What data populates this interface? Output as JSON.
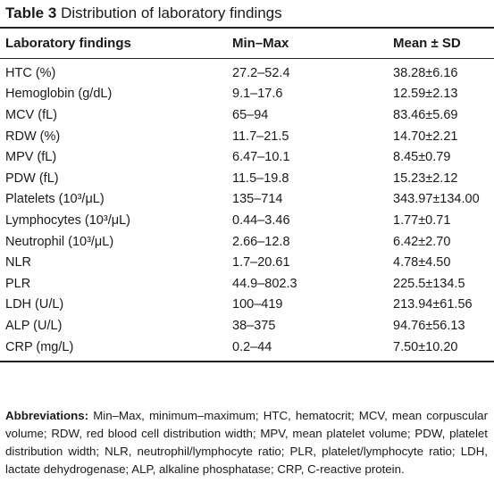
{
  "caption": {
    "label": "Table 3",
    "title": "Distribution of laboratory findings"
  },
  "table": {
    "headers": [
      "Laboratory findings",
      "Min–Max",
      "Mean ± SD"
    ],
    "rows": [
      {
        "finding": "HTC (%)",
        "range": "27.2–52.4",
        "mean": "38.28±6.16"
      },
      {
        "finding": "Hemoglobin (g/dL)",
        "range": "9.1–17.6",
        "mean": "12.59±2.13"
      },
      {
        "finding": "MCV (fL)",
        "range": "65–94",
        "mean": "83.46±5.69"
      },
      {
        "finding": "RDW (%)",
        "range": "11.7–21.5",
        "mean": "14.70±2.21"
      },
      {
        "finding": "MPV (fL)",
        "range": "6.47–10.1",
        "mean": "8.45±0.79"
      },
      {
        "finding": "PDW (fL)",
        "range": "11.5–19.8",
        "mean": "15.23±2.12"
      },
      {
        "finding": "Platelets (10³/μL)",
        "range": "135–714",
        "mean": "343.97±134.00"
      },
      {
        "finding": "Lymphocytes (10³/μL)",
        "range": "0.44–3.46",
        "mean": "1.77±0.71"
      },
      {
        "finding": "Neutrophil (10³/μL)",
        "range": "2.66–12.8",
        "mean": "6.42±2.70"
      },
      {
        "finding": "NLR",
        "range": "1.7–20.61",
        "mean": "4.78±4.50"
      },
      {
        "finding": "PLR",
        "range": "44.9–802.3",
        "mean": "225.5±134.5"
      },
      {
        "finding": "LDH (U/L)",
        "range": "100–419",
        "mean": "213.94±61.56"
      },
      {
        "finding": "ALP (U/L)",
        "range": "38–375",
        "mean": "94.76±56.13"
      },
      {
        "finding": "CRP (mg/L)",
        "range": "0.2–44",
        "mean": "7.50±10.20"
      }
    ]
  },
  "footnote": {
    "label": "Abbreviations:",
    "text": "Min–Max, minimum–maximum; HTC, hematocrit; MCV, mean corpuscular volume; RDW, red blood cell distribution width; MPV, mean platelet volume; PDW, platelet distribution width; NLR, neutrophil/lymphocyte ratio; PLR, platelet/lymphocyte ratio; LDH, lactate dehydrogenase; ALP, alkaline phosphatase; CRP, C-reactive protein."
  }
}
